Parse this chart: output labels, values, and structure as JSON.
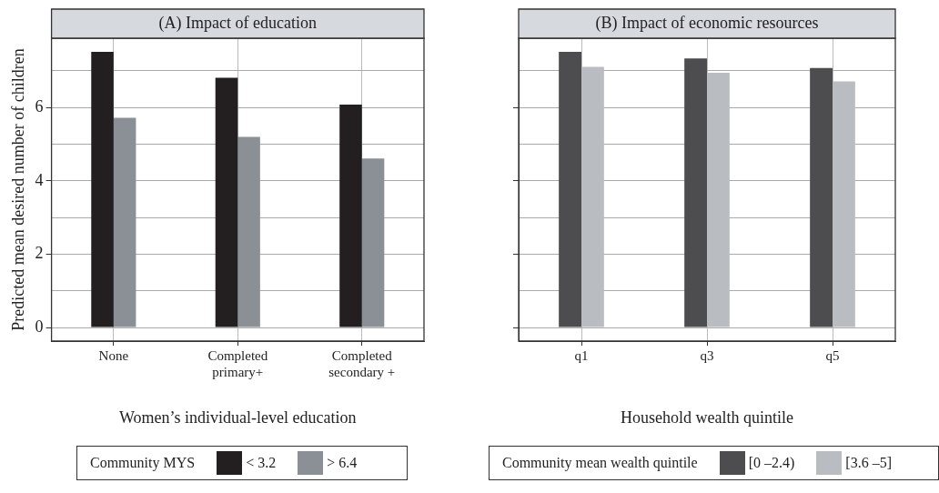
{
  "chart_data": [
    {
      "type": "bar",
      "title": "(A) Impact of education",
      "xlabel": "Women’s individual-level education",
      "ylabel": "Predicted mean desired number of children",
      "categories": [
        "None",
        "Completed primary+",
        "Completed secondary +"
      ],
      "legend_title": "Community MYS",
      "legend": "bottom",
      "grid": true,
      "ylim": [
        -0.37,
        7.89
      ],
      "yticks": [
        0,
        {
          "value": 1,
          "label": null
        },
        2,
        {
          "value": 3,
          "label": null
        },
        4,
        {
          "value": 5,
          "label": null
        },
        6,
        {
          "value": 7,
          "label": null
        }
      ],
      "series": [
        {
          "name": "< 3.2",
          "color": "#231f20",
          "values": [
            7.52,
            6.81,
            6.08
          ]
        },
        {
          "name": "> 6.4",
          "color": "#8a9096",
          "values": [
            5.72,
            5.2,
            4.61
          ]
        }
      ]
    },
    {
      "type": "bar",
      "title": "(B) Impact of economic resources",
      "xlabel": "Household wealth quintile",
      "categories": [
        "q1",
        "q3",
        "q5"
      ],
      "legend_title": "Community mean wealth quintile",
      "legend": "bottom",
      "grid": true,
      "tick_labels": "x",
      "ylim": [
        -0.37,
        7.89
      ],
      "yticks": [
        0,
        {
          "value": 1,
          "label": null
        },
        2,
        {
          "value": 3,
          "label": null
        },
        4,
        {
          "value": 5,
          "label": null
        },
        6,
        {
          "value": 7,
          "label": null
        }
      ],
      "series": [
        {
          "name": "[0 –2.4)",
          "color": "#4d4d4f",
          "values": [
            7.52,
            7.34,
            7.08
          ]
        },
        {
          "name": "[3.6 –5]",
          "color": "#b9bcc0",
          "values": [
            7.11,
            6.95,
            6.71
          ]
        }
      ]
    }
  ]
}
